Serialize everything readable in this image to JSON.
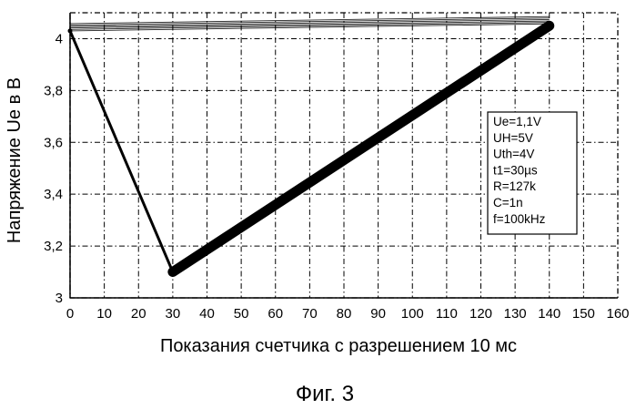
{
  "caption": "Фиг. 3",
  "chart_data": {
    "type": "line",
    "xlabel": "Показания счетчика с разрешением 10 мс",
    "ylabel": "Напряжение Ue в В",
    "xlim": [
      0,
      160
    ],
    "ylim": [
      3,
      4.1
    ],
    "x_ticks": [
      "0",
      "10",
      "20",
      "30",
      "40",
      "50",
      "60",
      "70",
      "80",
      "90",
      "100",
      "110",
      "120",
      "130",
      "140",
      "150",
      "160"
    ],
    "y_ticks": [
      {
        "value": 3,
        "label": "3"
      },
      {
        "value": 3.2,
        "label": "3,2"
      },
      {
        "value": 3.4,
        "label": "3,4"
      },
      {
        "value": 3.6,
        "label": "3,6"
      },
      {
        "value": 3.8,
        "label": "3,8"
      },
      {
        "value": 4,
        "label": "4"
      }
    ],
    "grid": true,
    "series": [
      {
        "color": "#000000",
        "x": [
          0,
          30,
          140,
          0
        ],
        "y": [
          4.03,
          3.1,
          4.05,
          4.03
        ]
      }
    ],
    "legend_box": {
      "position": "right",
      "lines": [
        "Ue=1,1V",
        "UH=5V",
        "Uth=4V",
        "t1=30µs",
        "R=127k",
        "C=1n",
        "f=100kHz"
      ]
    }
  }
}
